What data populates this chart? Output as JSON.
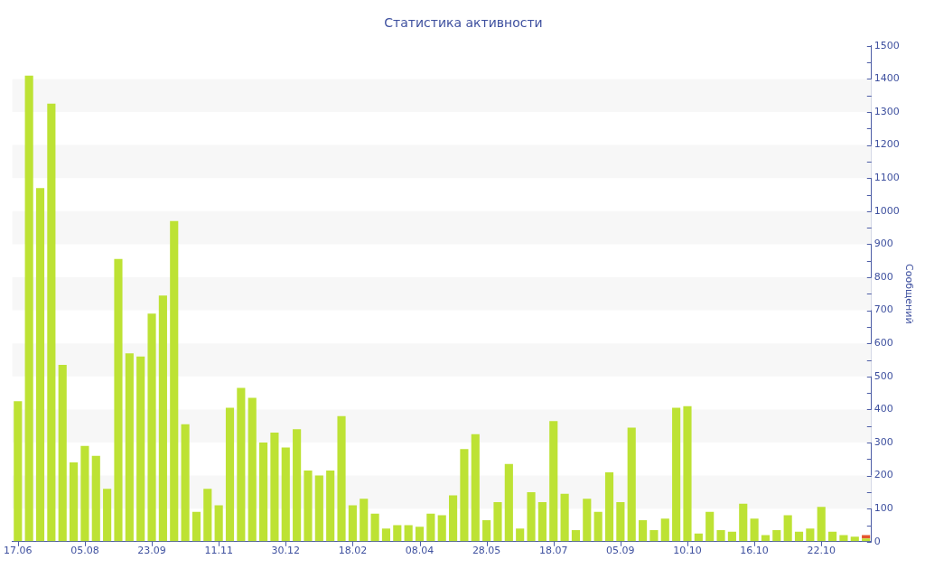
{
  "chart_data": {
    "type": "bar",
    "title": "Статистика активности",
    "ylabel": "Сообщений",
    "categories": [
      "17.06",
      null,
      null,
      null,
      null,
      null,
      "05.08",
      null,
      null,
      null,
      null,
      null,
      "23.09",
      null,
      null,
      null,
      null,
      null,
      "11.11",
      null,
      null,
      null,
      null,
      null,
      "30.12",
      null,
      null,
      null,
      null,
      null,
      "18.02",
      null,
      null,
      null,
      null,
      null,
      "08.04",
      null,
      null,
      null,
      null,
      null,
      "28.05",
      null,
      null,
      null,
      null,
      null,
      "18.07",
      null,
      null,
      null,
      null,
      null,
      "05.09",
      null,
      null,
      null,
      null,
      null,
      "10.10",
      null,
      null,
      null,
      null,
      null,
      "16.10",
      null,
      null,
      null,
      null,
      null,
      "22.10",
      null,
      null,
      null,
      null
    ],
    "stacked": true,
    "series": [
      {
        "color": "#bde234",
        "values": [
          425,
          1410,
          1070,
          1325,
          535,
          240,
          290,
          260,
          160,
          855,
          570,
          560,
          690,
          745,
          970,
          355,
          90,
          160,
          110,
          405,
          465,
          435,
          300,
          330,
          285,
          340,
          215,
          200,
          215,
          380,
          110,
          130,
          85,
          40,
          50,
          50,
          45,
          85,
          80,
          140,
          280,
          325,
          65,
          120,
          235,
          40,
          150,
          120,
          365,
          145,
          35,
          130,
          90,
          210,
          120,
          345,
          65,
          35,
          70,
          405,
          410,
          25,
          90,
          35,
          30,
          115,
          70,
          20,
          35,
          80,
          30,
          40,
          105,
          30,
          20,
          15,
          10
        ]
      },
      {
        "color": "#e4572e",
        "values": [
          null,
          null,
          null,
          null,
          null,
          null,
          null,
          null,
          null,
          null,
          null,
          null,
          null,
          null,
          null,
          null,
          null,
          null,
          null,
          null,
          null,
          null,
          null,
          null,
          null,
          null,
          null,
          null,
          null,
          null,
          null,
          null,
          null,
          null,
          null,
          null,
          null,
          null,
          null,
          null,
          null,
          null,
          null,
          null,
          null,
          null,
          null,
          null,
          null,
          null,
          null,
          null,
          null,
          null,
          null,
          null,
          null,
          null,
          null,
          null,
          null,
          null,
          null,
          null,
          null,
          null,
          null,
          null,
          null,
          null,
          null,
          null,
          null,
          null,
          null,
          null,
          10
        ]
      }
    ],
    "ylim": [
      0,
      1500
    ],
    "yticks": [
      0,
      {
        "value": 50,
        "label": null
      },
      100,
      {
        "value": 150,
        "label": null
      },
      200,
      {
        "value": 250,
        "label": null
      },
      300,
      {
        "value": 350,
        "label": null
      },
      400,
      {
        "value": 450,
        "label": null
      },
      500,
      {
        "value": 550,
        "label": null
      },
      600,
      {
        "value": 650,
        "label": null
      },
      700,
      {
        "value": 750,
        "label": null
      },
      800,
      {
        "value": 850,
        "label": null
      },
      900,
      {
        "value": 950,
        "label": null
      },
      1000,
      {
        "value": 1050,
        "label": null
      },
      1100,
      {
        "value": 1150,
        "label": null
      },
      1200,
      {
        "value": 1250,
        "label": null
      },
      1300,
      {
        "value": 1350,
        "label": null
      },
      1400,
      {
        "value": 1450,
        "label": null
      },
      1500
    ],
    "bands": [
      {
        "axis": "y",
        "from": 100,
        "to": 200,
        "color": "#f7f7f7"
      },
      {
        "axis": "y",
        "from": 300,
        "to": 400,
        "color": "#f7f7f7"
      },
      {
        "axis": "y",
        "from": 500,
        "to": 600,
        "color": "#f7f7f7"
      },
      {
        "axis": "y",
        "from": 700,
        "to": 800,
        "color": "#f7f7f7"
      },
      {
        "axis": "y",
        "from": 900,
        "to": 1000,
        "color": "#f7f7f7"
      },
      {
        "axis": "y",
        "from": 1100,
        "to": 1200,
        "color": "#f7f7f7"
      },
      {
        "axis": "y",
        "from": 1300,
        "to": 1400,
        "color": "#f7f7f7"
      }
    ]
  }
}
